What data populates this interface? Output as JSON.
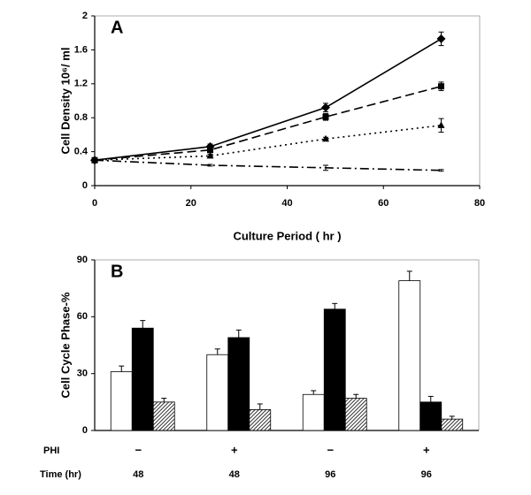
{
  "chart_data": [
    {
      "type": "line",
      "label": "A",
      "ylabel": "Cell Density 10⁶/ ml",
      "xlabel": "Culture Period ( hr )",
      "x": [
        0,
        24,
        48,
        72
      ],
      "series": [
        {
          "color": "#000000",
          "linestyle": "solid",
          "marker": "diamond",
          "values": [
            0.3,
            0.46,
            0.92,
            1.73
          ],
          "errors": [
            0.02,
            0.03,
            0.05,
            0.08
          ]
        },
        {
          "color": "#000000",
          "linestyle": "dashed",
          "marker": "square",
          "values": [
            0.3,
            0.42,
            0.81,
            1.17
          ],
          "errors": [
            0.02,
            0.03,
            0.04,
            0.05
          ]
        },
        {
          "color": "#000000",
          "linestyle": "dotted",
          "marker": "triangle",
          "values": [
            0.3,
            0.35,
            0.55,
            0.71
          ],
          "errors": [
            0.01,
            0.02,
            0.02,
            0.08
          ]
        },
        {
          "color": "#000000",
          "linestyle": "dashdot",
          "marker": "none",
          "values": [
            0.3,
            0.24,
            0.21,
            0.18
          ],
          "errors": [
            0.01,
            0.01,
            0.03,
            0.01
          ]
        }
      ],
      "xlim": [
        0,
        80
      ],
      "xticks": [
        0,
        20,
        40,
        60,
        80
      ],
      "ylim": [
        0,
        2
      ],
      "yticks": [
        0,
        0.4,
        0.8,
        1.2,
        1.6,
        2
      ]
    },
    {
      "type": "bar",
      "label": "B",
      "ylabel": "Cell Cycle Phase-%",
      "category_rows": [
        {
          "label": "PHI",
          "values": [
            "−",
            "+",
            "−",
            "+"
          ]
        },
        {
          "label": "Time (hr)",
          "values": [
            "48",
            "48",
            "96",
            "96"
          ]
        }
      ],
      "series": [
        {
          "color": "#ffffff",
          "hatch": false,
          "values": [
            31,
            40,
            19,
            79
          ],
          "errors": [
            3,
            3,
            2,
            5
          ]
        },
        {
          "color": "#000000",
          "hatch": false,
          "values": [
            54,
            49,
            64,
            15
          ],
          "errors": [
            4,
            4,
            3,
            3
          ]
        },
        {
          "color": "#555555",
          "hatch": true,
          "values": [
            15,
            11,
            17,
            6
          ],
          "errors": [
            2,
            3,
            2,
            1.5
          ]
        }
      ],
      "ylim": [
        0,
        90
      ],
      "yticks": [
        0,
        30,
        60,
        90
      ]
    }
  ]
}
